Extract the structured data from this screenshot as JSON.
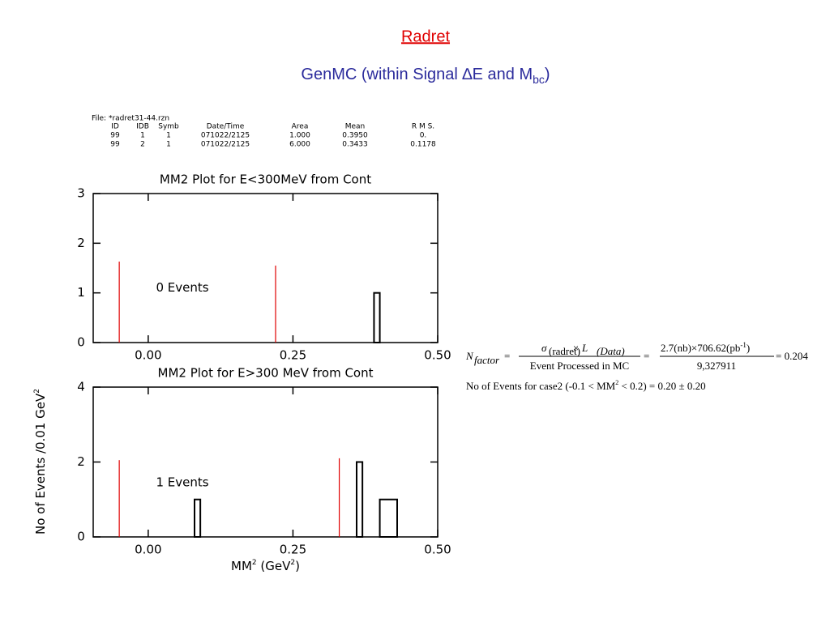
{
  "slide": {
    "title": "Radret",
    "subtitle": [
      "GenMC (within Signal ∆E and M",
      "bc",
      ")"
    ]
  },
  "file_info": {
    "file": "File: *radret31-44.rzn",
    "columns": [
      "ID",
      "IDB",
      "Symb",
      "Date/Time",
      "Area",
      "Mean",
      "R M S."
    ],
    "rows": [
      [
        "99",
        "1",
        "1",
        "071022/2125",
        "1.000",
        "0.3950",
        "0."
      ],
      [
        "99",
        "2",
        "1",
        "071022/2125",
        "6.000",
        "0.3433",
        "0.1178"
      ]
    ]
  },
  "formula": {
    "n": "N",
    "n_sub": "factor",
    "eq1": "=",
    "sigma": "σ",
    "sigma_sub": "(radret)",
    "times_l": "× L",
    "l_sub": "(Data)",
    "denominator": "Event Processed in MC",
    "eq2": "=",
    "num2": "2.7(nb)×706.62(pb",
    "num2_sup": "-1",
    "num2_end": ")",
    "den2": "9,327911",
    "result": "= 0.204",
    "line2": [
      "No of Events for case2 (-0.1 < MM",
      "2",
      " < 0.2)  = 0.20 ± 0.20"
    ]
  },
  "chart_data": [
    {
      "type": "histogram",
      "title": "MM2 Plot for E<300MeV from Cont",
      "xlim": [
        -0.095,
        0.5
      ],
      "xticks": [
        {
          "value": 0,
          "label": "0.00"
        },
        {
          "value": 0.25,
          "label": "0.25"
        },
        {
          "value": 0.5,
          "label": "0.50"
        }
      ],
      "ylim": [
        0,
        3
      ],
      "yticks": [
        0,
        1,
        2,
        3
      ],
      "bar_left": [
        0.39
      ],
      "bar_right": [
        0.4
      ],
      "values": [
        1
      ],
      "color": "#000000",
      "cut_lines": {
        "x": [
          -0.05,
          0.22
        ],
        "height": [
          1.63,
          1.55
        ],
        "color": "#e00000"
      },
      "annotation": "0 Events"
    },
    {
      "type": "histogram",
      "title": "MM2 Plot for E>300 MeV from Cont",
      "xlim": [
        -0.095,
        0.5
      ],
      "xticks": [
        {
          "value": 0,
          "label": "0.00"
        },
        {
          "value": 0.25,
          "label": "0.25"
        },
        {
          "value": 0.5,
          "label": "0.50"
        }
      ],
      "ylim": [
        0,
        4
      ],
      "yticks": [
        0,
        2,
        4
      ],
      "bar_left": [
        0.08,
        0.36,
        0.4
      ],
      "bar_right": [
        0.09,
        0.37,
        0.43
      ],
      "values": [
        1,
        2,
        1
      ],
      "color": "#000000",
      "cut_lines": {
        "x": [
          -0.05,
          0.33
        ],
        "height": [
          2.05,
          2.1
        ],
        "color": "#e00000"
      },
      "annotation": "1 Events",
      "x_label": [
        "MM",
        "2",
        " (GeV",
        "2",
        ")"
      ],
      "y_label": [
        "No of Events /0.01 GeV",
        "2"
      ]
    }
  ]
}
